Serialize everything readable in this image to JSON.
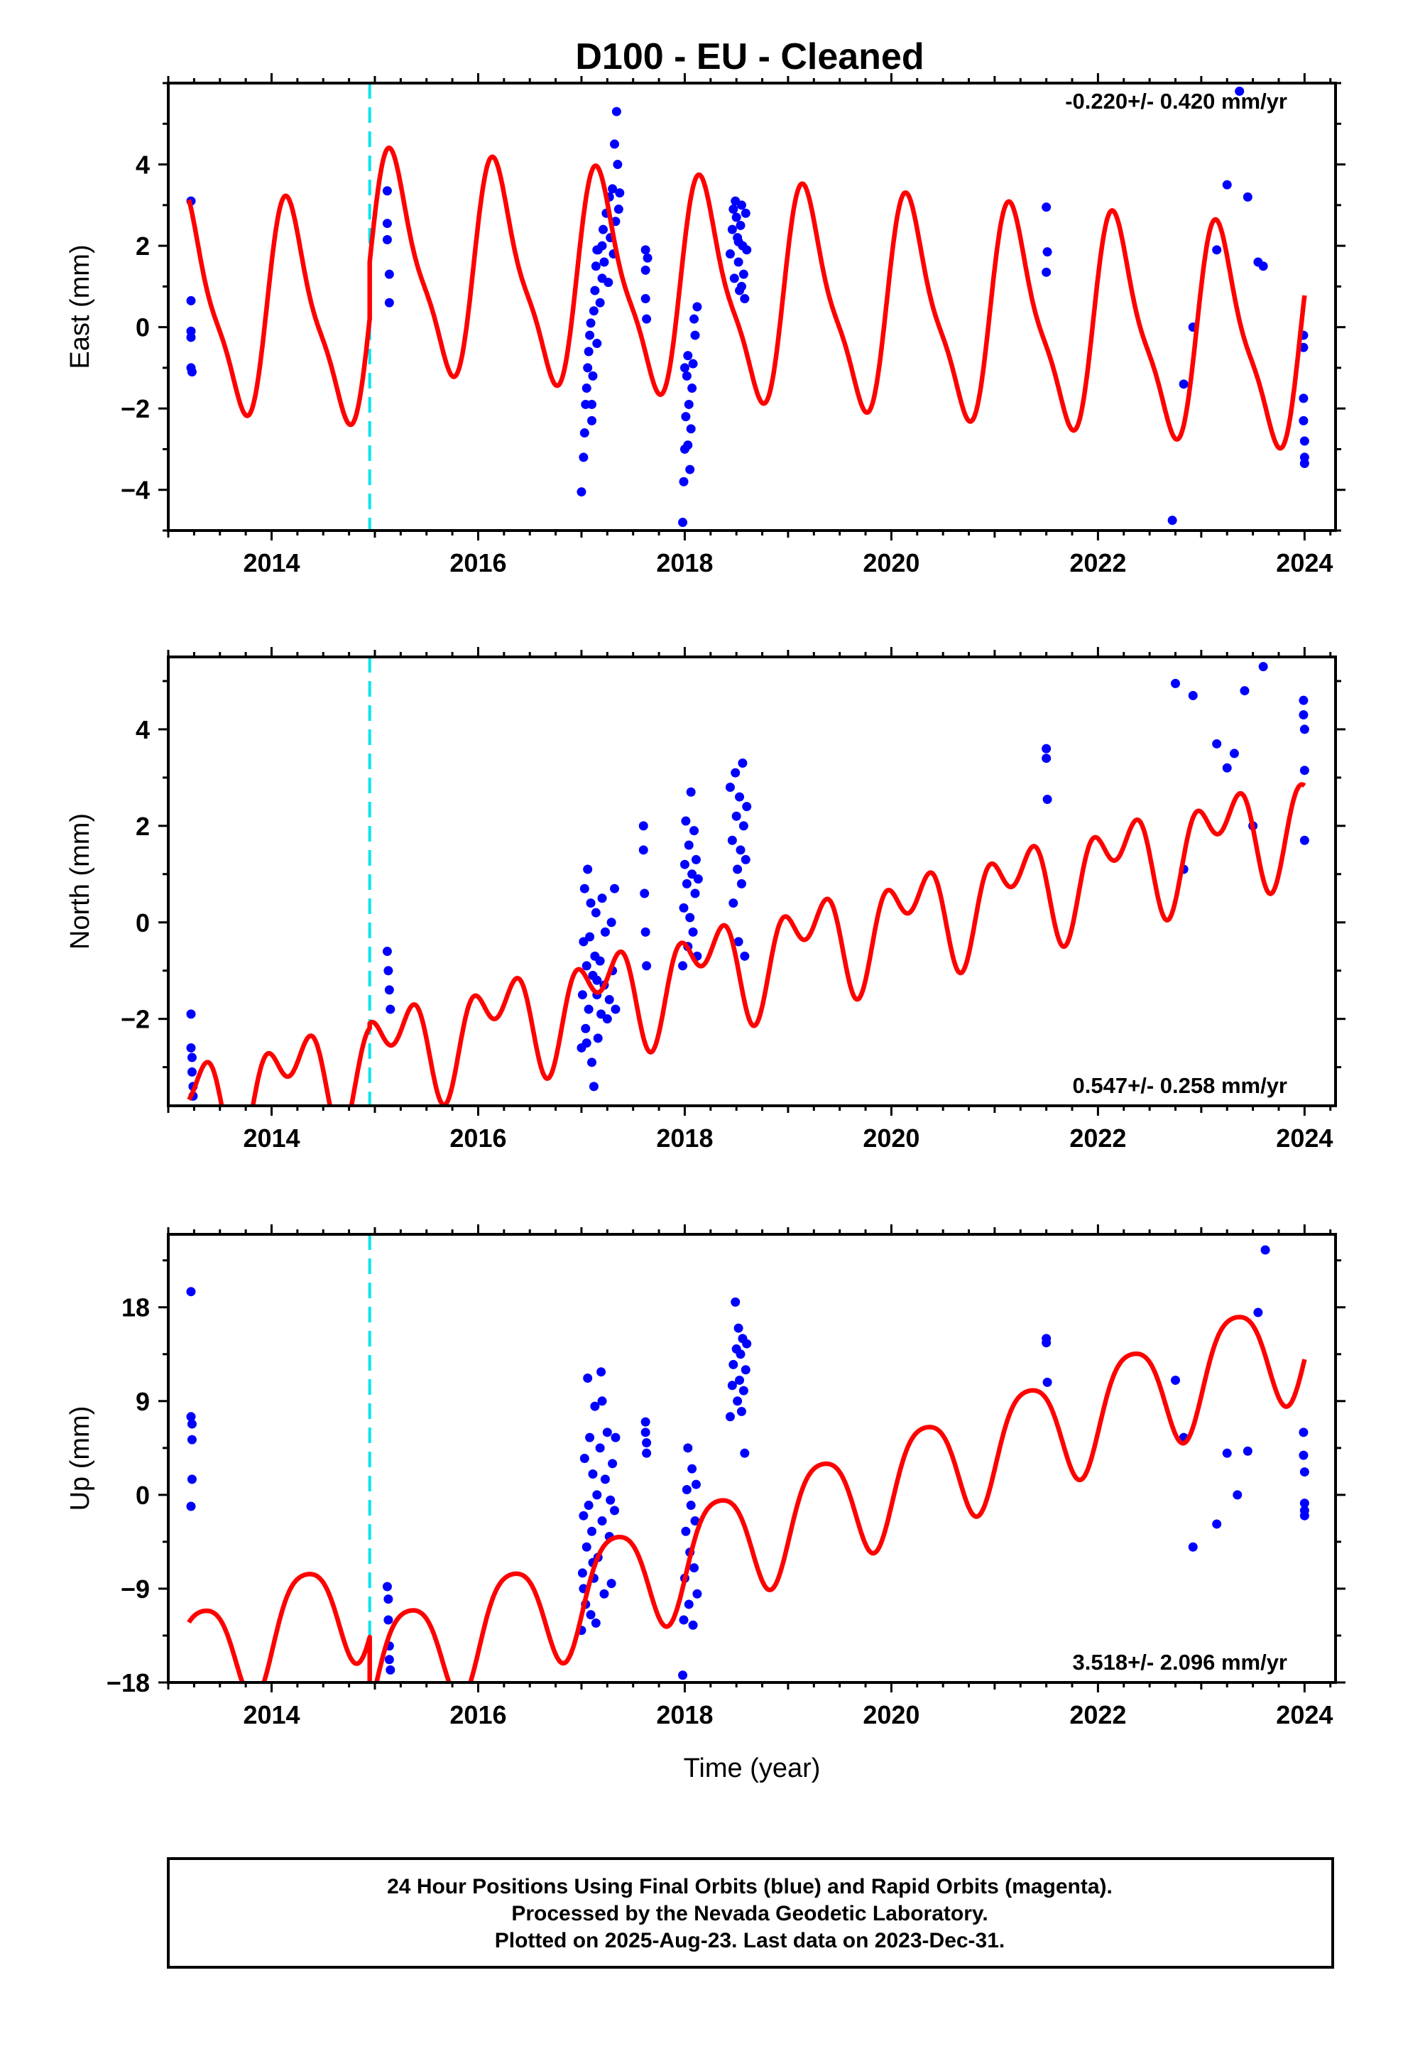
{
  "title": "D100  - EU - Cleaned",
  "footer": {
    "lines": [
      "24 Hour Positions Using Final Orbits (blue) and Rapid Orbits (magenta).",
      "Processed by the Nevada Geodetic Laboratory.",
      "Plotted on 2025-Aug-23. Last data on 2023-Dec-31."
    ]
  },
  "colors": {
    "data_points": "#0000ff",
    "model_fit": "#ff0000",
    "equipment_change": "#00e5ee",
    "axes": "#000000"
  },
  "chart_data": [
    {
      "type": "scatter",
      "name": "east",
      "ylabel": "East (mm)",
      "xlabel": "",
      "rate_text": "-0.220+/- 0.420 mm/yr",
      "xlim": [
        2013.0,
        2024.3
      ],
      "ylim": [
        -5.0,
        6.0
      ],
      "xticks": [
        2014,
        2016,
        2018,
        2020,
        2022,
        2024
      ],
      "yticks": [
        -4,
        -2,
        0,
        2,
        4
      ],
      "ytick_labels": [
        "−4",
        "−2",
        "0",
        "2",
        "4"
      ],
      "equipment_change_x": 2014.95,
      "model": {
        "trend": -0.22,
        "jump_at": 2014.95,
        "jump": 1.8,
        "offset_before": -0.5,
        "offset_after": 0.9,
        "annual_sin": 2.3,
        "annual_cos": 0.9,
        "semiannual_sin": 0.6,
        "semiannual_cos": 0.3
      },
      "points": [
        [
          2013.22,
          3.1
        ],
        [
          2013.22,
          0.65
        ],
        [
          2013.22,
          -0.1
        ],
        [
          2013.22,
          -1.0
        ],
        [
          2013.23,
          -1.1
        ],
        [
          2013.22,
          -0.25
        ],
        [
          2015.12,
          3.35
        ],
        [
          2015.12,
          2.55
        ],
        [
          2015.12,
          2.15
        ],
        [
          2015.14,
          1.3
        ],
        [
          2015.14,
          0.6
        ],
        [
          2017.0,
          -4.05
        ],
        [
          2017.02,
          -3.2
        ],
        [
          2017.03,
          -2.6
        ],
        [
          2017.04,
          -1.9
        ],
        [
          2017.05,
          -1.5
        ],
        [
          2017.06,
          -1.0
        ],
        [
          2017.07,
          -0.6
        ],
        [
          2017.08,
          -0.2
        ],
        [
          2017.09,
          0.1
        ],
        [
          2017.1,
          -2.3
        ],
        [
          2017.11,
          -1.2
        ],
        [
          2017.12,
          0.4
        ],
        [
          2017.13,
          0.9
        ],
        [
          2017.14,
          1.5
        ],
        [
          2017.15,
          -0.4
        ],
        [
          2017.16,
          1.9
        ],
        [
          2017.18,
          0.6
        ],
        [
          2017.2,
          1.2
        ],
        [
          2017.21,
          2.4
        ],
        [
          2017.22,
          1.6
        ],
        [
          2017.24,
          2.8
        ],
        [
          2017.26,
          1.1
        ],
        [
          2017.27,
          3.2
        ],
        [
          2017.28,
          2.2
        ],
        [
          2017.3,
          3.4
        ],
        [
          2017.31,
          1.8
        ],
        [
          2017.32,
          4.5
        ],
        [
          2017.33,
          2.6
        ],
        [
          2017.34,
          5.3
        ],
        [
          2017.35,
          4.0
        ],
        [
          2017.36,
          2.9
        ],
        [
          2017.37,
          3.3
        ],
        [
          2017.1,
          -1.9
        ],
        [
          2017.15,
          1.9
        ],
        [
          2017.2,
          2.0
        ],
        [
          2017.62,
          1.9
        ],
        [
          2017.62,
          1.4
        ],
        [
          2017.62,
          0.7
        ],
        [
          2017.63,
          0.2
        ],
        [
          2017.64,
          1.7
        ],
        [
          2017.98,
          -4.8
        ],
        [
          2017.99,
          -3.8
        ],
        [
          2018.0,
          -3.0
        ],
        [
          2018.01,
          -2.2
        ],
        [
          2018.02,
          -1.2
        ],
        [
          2018.03,
          -0.7
        ],
        [
          2018.04,
          -1.9
        ],
        [
          2018.05,
          -3.5
        ],
        [
          2018.06,
          -2.5
        ],
        [
          2018.07,
          -1.5
        ],
        [
          2018.08,
          -0.9
        ],
        [
          2018.09,
          0.2
        ],
        [
          2018.1,
          -0.2
        ],
        [
          2018.12,
          0.5
        ],
        [
          2018.0,
          -1.0
        ],
        [
          2018.03,
          -2.9
        ],
        [
          2018.44,
          1.8
        ],
        [
          2018.46,
          2.4
        ],
        [
          2018.48,
          1.2
        ],
        [
          2018.49,
          3.1
        ],
        [
          2018.5,
          2.7
        ],
        [
          2018.51,
          2.2
        ],
        [
          2018.52,
          1.6
        ],
        [
          2018.53,
          0.9
        ],
        [
          2018.54,
          2.5
        ],
        [
          2018.55,
          3.0
        ],
        [
          2018.56,
          2.0
        ],
        [
          2018.57,
          1.3
        ],
        [
          2018.58,
          0.7
        ],
        [
          2018.59,
          2.8
        ],
        [
          2018.6,
          1.9
        ],
        [
          2018.47,
          2.9
        ],
        [
          2018.52,
          2.1
        ],
        [
          2018.55,
          1.0
        ],
        [
          2021.5,
          2.95
        ],
        [
          2021.51,
          1.85
        ],
        [
          2021.5,
          1.35
        ],
        [
          2022.72,
          -4.75
        ],
        [
          2022.83,
          -1.4
        ],
        [
          2022.92,
          0.0
        ],
        [
          2023.15,
          1.9
        ],
        [
          2023.25,
          3.5
        ],
        [
          2023.37,
          5.8
        ],
        [
          2023.45,
          3.2
        ],
        [
          2023.6,
          1.5
        ],
        [
          2023.55,
          1.6
        ],
        [
          2023.99,
          -0.2
        ],
        [
          2023.99,
          -0.5
        ],
        [
          2023.99,
          -1.75
        ],
        [
          2023.99,
          -2.3
        ],
        [
          2024.0,
          -2.8
        ],
        [
          2024.0,
          -3.2
        ],
        [
          2024.0,
          -3.35
        ]
      ]
    },
    {
      "type": "scatter",
      "name": "north",
      "ylabel": "North (mm)",
      "xlabel": "",
      "rate_text": "0.547+/- 0.258 mm/yr",
      "xlim": [
        2013.0,
        2024.3
      ],
      "ylim": [
        -3.8,
        5.5
      ],
      "xticks": [
        2014,
        2016,
        2018,
        2020,
        2022,
        2024
      ],
      "yticks": [
        -2,
        0,
        2,
        4
      ],
      "ytick_labels": [
        "−2",
        "0",
        "2",
        "4"
      ],
      "equipment_change_x": 2014.95,
      "model": {
        "trend": 0.547,
        "jump_at": 2014.95,
        "jump": 0.15,
        "offset_before": -1.2,
        "offset_after": -1.1,
        "annual_sin": 0.7,
        "annual_cos": 0.3,
        "semiannual_sin": -0.55,
        "semiannual_cos": 0.35
      },
      "points": [
        [
          2013.22,
          -1.9
        ],
        [
          2013.22,
          -2.6
        ],
        [
          2013.23,
          -2.8
        ],
        [
          2013.23,
          -3.1
        ],
        [
          2013.24,
          -3.4
        ],
        [
          2013.24,
          -3.6
        ],
        [
          2015.12,
          -0.6
        ],
        [
          2015.13,
          -1.0
        ],
        [
          2015.14,
          -1.4
        ],
        [
          2015.15,
          -1.8
        ],
        [
          2017.0,
          -2.6
        ],
        [
          2017.01,
          -1.5
        ],
        [
          2017.02,
          -0.4
        ],
        [
          2017.03,
          0.7
        ],
        [
          2017.04,
          -2.2
        ],
        [
          2017.05,
          -0.9
        ],
        [
          2017.06,
          1.1
        ],
        [
          2017.07,
          -1.8
        ],
        [
          2017.08,
          -0.3
        ],
        [
          2017.09,
          0.4
        ],
        [
          2017.1,
          -2.9
        ],
        [
          2017.11,
          -1.1
        ],
        [
          2017.12,
          -3.4
        ],
        [
          2017.13,
          -0.7
        ],
        [
          2017.14,
          0.2
        ],
        [
          2017.15,
          -1.5
        ],
        [
          2017.16,
          -2.4
        ],
        [
          2017.18,
          -0.8
        ],
        [
          2017.19,
          -1.9
        ],
        [
          2017.2,
          0.5
        ],
        [
          2017.22,
          -1.3
        ],
        [
          2017.23,
          -0.2
        ],
        [
          2017.25,
          -2.0
        ],
        [
          2017.27,
          -1.6
        ],
        [
          2017.29,
          0.0
        ],
        [
          2017.3,
          -1.0
        ],
        [
          2017.32,
          0.7
        ],
        [
          2017.33,
          -1.8
        ],
        [
          2017.05,
          -2.5
        ],
        [
          2017.15,
          -1.2
        ],
        [
          2017.6,
          2.0
        ],
        [
          2017.6,
          1.5
        ],
        [
          2017.61,
          0.6
        ],
        [
          2017.62,
          -0.2
        ],
        [
          2017.63,
          -0.9
        ],
        [
          2017.98,
          -0.9
        ],
        [
          2017.99,
          0.3
        ],
        [
          2018.0,
          1.2
        ],
        [
          2018.01,
          2.1
        ],
        [
          2018.02,
          0.8
        ],
        [
          2018.03,
          -0.5
        ],
        [
          2018.04,
          1.6
        ],
        [
          2018.05,
          0.1
        ],
        [
          2018.06,
          2.7
        ],
        [
          2018.07,
          1.0
        ],
        [
          2018.08,
          -0.2
        ],
        [
          2018.09,
          1.9
        ],
        [
          2018.1,
          0.6
        ],
        [
          2018.11,
          1.3
        ],
        [
          2018.12,
          -0.7
        ],
        [
          2018.13,
          0.9
        ],
        [
          2018.44,
          2.8
        ],
        [
          2018.46,
          1.7
        ],
        [
          2018.47,
          0.4
        ],
        [
          2018.49,
          3.1
        ],
        [
          2018.5,
          2.2
        ],
        [
          2018.51,
          1.1
        ],
        [
          2018.52,
          -0.4
        ],
        [
          2018.53,
          2.6
        ],
        [
          2018.54,
          1.5
        ],
        [
          2018.55,
          0.8
        ],
        [
          2018.56,
          3.3
        ],
        [
          2018.57,
          2.0
        ],
        [
          2018.58,
          -0.7
        ],
        [
          2018.59,
          1.3
        ],
        [
          2018.6,
          2.4
        ],
        [
          2021.5,
          3.6
        ],
        [
          2021.5,
          3.4
        ],
        [
          2021.51,
          2.55
        ],
        [
          2022.75,
          4.95
        ],
        [
          2022.83,
          1.1
        ],
        [
          2022.92,
          4.7
        ],
        [
          2023.15,
          3.7
        ],
        [
          2023.25,
          3.2
        ],
        [
          2023.32,
          3.5
        ],
        [
          2023.42,
          4.8
        ],
        [
          2023.5,
          2.0
        ],
        [
          2023.6,
          5.3
        ],
        [
          2023.99,
          4.6
        ],
        [
          2023.99,
          4.3
        ],
        [
          2024.0,
          4.0
        ],
        [
          2024.0,
          3.15
        ],
        [
          2024.0,
          1.7
        ]
      ]
    },
    {
      "type": "scatter",
      "name": "up",
      "ylabel": "Up (mm)",
      "xlabel": "Time (year)",
      "rate_text": "3.518+/- 2.096 mm/yr",
      "xlim": [
        2013.0,
        2024.3
      ],
      "ylim": [
        -18.0,
        25.0
      ],
      "xticks": [
        2014,
        2016,
        2018,
        2020,
        2022,
        2024
      ],
      "yticks": [
        -18,
        -9,
        0,
        9,
        18
      ],
      "ytick_labels": [
        "−18",
        "−9",
        "0",
        "9",
        "18"
      ],
      "equipment_change_x": 2014.95,
      "model": {
        "trend": 3.518,
        "jump_at": 2014.95,
        "jump": -20.0,
        "offset_before": 1.0,
        "offset_after": -6.0,
        "annual_sin": 4.5,
        "annual_cos": -2.5,
        "semiannual_sin": 0.8,
        "semiannual_cos": 0.4
      },
      "points": [
        [
          2013.22,
          19.5
        ],
        [
          2013.22,
          7.5
        ],
        [
          2013.23,
          6.8
        ],
        [
          2013.23,
          5.3
        ],
        [
          2013.23,
          1.5
        ],
        [
          2013.22,
          -1.1
        ],
        [
          2015.12,
          -8.8
        ],
        [
          2015.13,
          -10.0
        ],
        [
          2015.13,
          -12.0
        ],
        [
          2015.14,
          -14.5
        ],
        [
          2015.14,
          -15.8
        ],
        [
          2015.15,
          -16.8
        ],
        [
          2017.0,
          -13.0
        ],
        [
          2017.01,
          -7.5
        ],
        [
          2017.02,
          -2.0
        ],
        [
          2017.03,
          3.5
        ],
        [
          2017.04,
          -10.5
        ],
        [
          2017.05,
          -5.0
        ],
        [
          2017.06,
          11.2
        ],
        [
          2017.07,
          -1.0
        ],
        [
          2017.08,
          5.5
        ],
        [
          2017.09,
          -11.5
        ],
        [
          2017.1,
          -3.5
        ],
        [
          2017.11,
          2.0
        ],
        [
          2017.12,
          -8.0
        ],
        [
          2017.13,
          8.5
        ],
        [
          2017.14,
          -12.3
        ],
        [
          2017.15,
          0.0
        ],
        [
          2017.16,
          -6.0
        ],
        [
          2017.18,
          4.5
        ],
        [
          2017.19,
          11.8
        ],
        [
          2017.2,
          -2.5
        ],
        [
          2017.22,
          -9.5
        ],
        [
          2017.23,
          1.5
        ],
        [
          2017.25,
          6.0
        ],
        [
          2017.27,
          -4.0
        ],
        [
          2017.29,
          -8.5
        ],
        [
          2017.3,
          3.0
        ],
        [
          2017.32,
          -1.5
        ],
        [
          2017.33,
          5.5
        ],
        [
          2017.02,
          -9.0
        ],
        [
          2017.11,
          -6.5
        ],
        [
          2017.2,
          9.0
        ],
        [
          2017.28,
          -0.5
        ],
        [
          2017.62,
          7.0
        ],
        [
          2017.62,
          6.0
        ],
        [
          2017.63,
          5.0
        ],
        [
          2017.63,
          4.0
        ],
        [
          2017.98,
          -17.3
        ],
        [
          2017.99,
          -12.0
        ],
        [
          2018.0,
          -8.0
        ],
        [
          2018.01,
          -3.5
        ],
        [
          2018.02,
          0.5
        ],
        [
          2018.03,
          4.5
        ],
        [
          2018.04,
          -10.5
        ],
        [
          2018.05,
          -5.5
        ],
        [
          2018.06,
          -1.0
        ],
        [
          2018.07,
          2.5
        ],
        [
          2018.08,
          -12.5
        ],
        [
          2018.09,
          -7.0
        ],
        [
          2018.1,
          -2.5
        ],
        [
          2018.11,
          1.0
        ],
        [
          2018.12,
          -9.5
        ],
        [
          2018.44,
          7.5
        ],
        [
          2018.46,
          10.5
        ],
        [
          2018.47,
          12.5
        ],
        [
          2018.49,
          18.5
        ],
        [
          2018.5,
          14.0
        ],
        [
          2018.51,
          9.0
        ],
        [
          2018.52,
          16.0
        ],
        [
          2018.53,
          11.0
        ],
        [
          2018.54,
          13.5
        ],
        [
          2018.55,
          8.0
        ],
        [
          2018.56,
          15.0
        ],
        [
          2018.57,
          10.0
        ],
        [
          2018.58,
          4.0
        ],
        [
          2018.59,
          12.0
        ],
        [
          2018.6,
          14.5
        ],
        [
          2021.5,
          15.0
        ],
        [
          2021.5,
          14.6
        ],
        [
          2021.51,
          10.8
        ],
        [
          2022.75,
          11.0
        ],
        [
          2022.83,
          5.5
        ],
        [
          2022.92,
          -5.0
        ],
        [
          2023.15,
          -2.8
        ],
        [
          2023.25,
          4.0
        ],
        [
          2023.35,
          0.0
        ],
        [
          2023.45,
          4.2
        ],
        [
          2023.55,
          17.5
        ],
        [
          2023.62,
          23.5
        ],
        [
          2023.99,
          6.0
        ],
        [
          2023.99,
          3.8
        ],
        [
          2024.0,
          2.2
        ],
        [
          2024.0,
          -0.8
        ],
        [
          2024.0,
          -1.5
        ],
        [
          2024.0,
          -2.0
        ]
      ]
    }
  ]
}
